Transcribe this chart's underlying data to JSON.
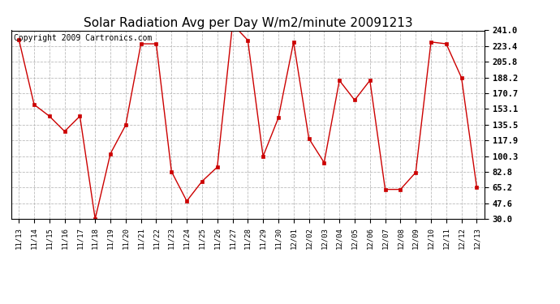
{
  "title": "Solar Radiation Avg per Day W/m2/minute 20091213",
  "copyright": "Copyright 2009 Cartronics.com",
  "dates": [
    "11/13",
    "11/14",
    "11/15",
    "11/16",
    "11/17",
    "11/18",
    "11/19",
    "11/20",
    "11/21",
    "11/22",
    "11/23",
    "11/24",
    "11/25",
    "11/26",
    "11/27",
    "11/28",
    "11/29",
    "11/30",
    "12/01",
    "12/02",
    "12/03",
    "12/04",
    "12/05",
    "12/06",
    "12/07",
    "12/08",
    "12/09",
    "12/10",
    "12/11",
    "12/12",
    "12/13"
  ],
  "values": [
    231,
    158,
    145,
    128,
    145,
    30,
    103,
    135,
    226,
    226,
    83,
    50,
    72,
    88,
    248,
    230,
    100,
    143,
    228,
    120,
    93,
    185,
    163,
    185,
    63,
    63,
    82,
    228,
    226,
    188,
    65
  ],
  "line_color": "#cc0000",
  "marker": "s",
  "marker_size": 3,
  "bg_color": "#ffffff",
  "grid_color": "#bbbbbb",
  "ymin": 30.0,
  "ymax": 241.0,
  "yticks": [
    30.0,
    47.6,
    65.2,
    82.8,
    100.3,
    117.9,
    135.5,
    153.1,
    170.7,
    188.2,
    205.8,
    223.4,
    241.0
  ],
  "title_fontsize": 11,
  "copyright_fontsize": 7,
  "tick_fontsize": 7.5,
  "xtick_fontsize": 6.5
}
